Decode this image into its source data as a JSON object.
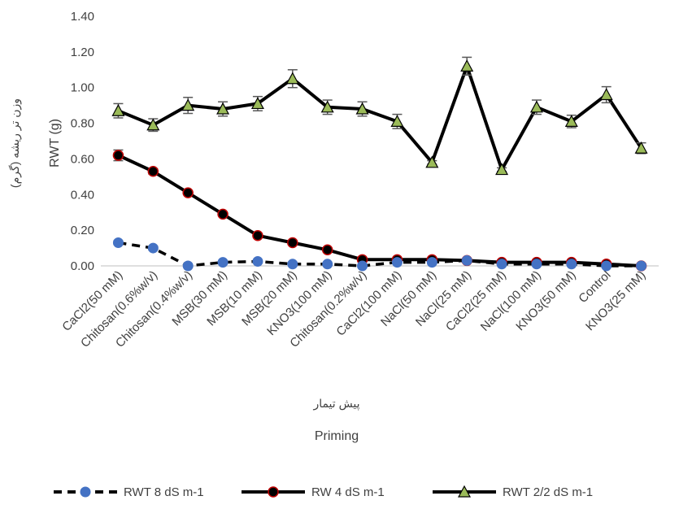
{
  "chart_data": {
    "type": "line",
    "categories": [
      "CaCl2(50 mM)",
      "Chitosan(0.6%w/v)",
      "Chitosan(0.4%w/v)",
      "MSB(30 mM)",
      "MSB(10 mM)",
      "MSB(20 mM)",
      "KNO3(100 mM)",
      "Chitosan(0.2%w/v)",
      "CaCl2(100 mM)",
      "NaCl(50 mM)",
      "NaCl(25 mM)",
      "CaCl2(25 mM)",
      "NaCl(100 mM)",
      "KNO3(50 mM)",
      "Control",
      "KNO3(25 mM)"
    ],
    "series": [
      {
        "name": "RWT 8 dS m-1",
        "color": "#4472C4",
        "line": "dashed",
        "marker": "circle",
        "values": [
          0.13,
          0.1,
          0.0,
          0.02,
          0.025,
          0.01,
          0.01,
          0.0,
          0.02,
          0.02,
          0.03,
          0.01,
          0.01,
          0.01,
          0.0,
          0.0
        ],
        "errors": [
          0.01,
          0.01,
          0.005,
          0.005,
          0.005,
          0.005,
          0.005,
          0.005,
          0.005,
          0.005,
          0.005,
          0.005,
          0.005,
          0.005,
          0.005,
          0.005
        ]
      },
      {
        "name": "RW 4 dS m-1",
        "color": "#000000",
        "line": "solid",
        "marker": "circle",
        "marker_fill": "#000000",
        "marker_edge": "#C00000",
        "values": [
          0.62,
          0.53,
          0.41,
          0.29,
          0.17,
          0.13,
          0.09,
          0.035,
          0.035,
          0.035,
          0.03,
          0.02,
          0.02,
          0.02,
          0.01,
          0.0
        ],
        "errors": [
          0.03,
          0.015,
          0.01,
          0.01,
          0.01,
          0.01,
          0.01,
          0.005,
          0.005,
          0.005,
          0.005,
          0.005,
          0.005,
          0.005,
          0.005,
          0.005
        ]
      },
      {
        "name": "RWT 2/2 dS m-1",
        "color": "#000000",
        "line": "solid",
        "marker": "triangle",
        "marker_fill": "#9BBB59",
        "values": [
          0.87,
          0.79,
          0.9,
          0.88,
          0.91,
          1.05,
          0.89,
          0.88,
          0.81,
          0.58,
          1.12,
          0.54,
          0.89,
          0.81,
          0.96,
          0.66
        ],
        "errors": [
          0.04,
          0.035,
          0.045,
          0.04,
          0.04,
          0.05,
          0.04,
          0.04,
          0.04,
          0.01,
          0.05,
          0.01,
          0.04,
          0.035,
          0.045,
          0.03
        ]
      }
    ],
    "ylim": [
      0,
      1.4
    ],
    "yticks": [
      "0.00",
      "0.20",
      "0.40",
      "0.60",
      "0.80",
      "1.00",
      "1.20",
      "1.40"
    ],
    "ylabel": "RWT (g)",
    "ylabel_fa": "وزن تر ریشه (گرم)",
    "xlabel": "Priming",
    "xlabel_fa": "پیش تیمار",
    "grid": false,
    "legend_position": "bottom"
  }
}
